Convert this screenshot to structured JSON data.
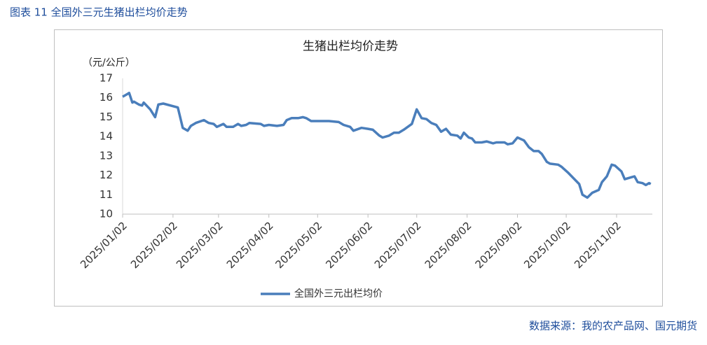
{
  "caption": "图表 11  全国外三元生猪出栏均价走势",
  "source": "数据来源：我的农产品网、国元期货",
  "chart_data": {
    "type": "line",
    "title": "生猪出栏均价走势",
    "y_label": "（元/公斤）",
    "x": [
      "2025/01/02",
      "2025/01/05",
      "2025/01/06",
      "2025/01/08",
      "2025/01/09",
      "2025/01/12",
      "2025/01/14",
      "2025/01/15",
      "2025/01/19",
      "2025/01/22",
      "2025/01/24",
      "2025/01/27",
      "2025/02/05",
      "2025/02/08",
      "2025/02/11",
      "2025/02/13",
      "2025/02/16",
      "2025/02/21",
      "2025/02/24",
      "2025/02/27",
      "2025/03/01",
      "2025/03/05",
      "2025/03/07",
      "2025/03/11",
      "2025/03/14",
      "2025/03/16",
      "2025/03/19",
      "2025/03/21",
      "2025/03/28",
      "2025/03/30",
      "2025/04/02",
      "2025/04/07",
      "2025/04/11",
      "2025/04/13",
      "2025/04/16",
      "2025/04/20",
      "2025/04/23",
      "2025/04/25",
      "2025/04/28",
      "2025/05/09",
      "2025/05/15",
      "2025/05/18",
      "2025/05/22",
      "2025/05/24",
      "2025/05/29",
      "2025/06/02",
      "2025/06/05",
      "2025/06/09",
      "2025/06/11",
      "2025/06/15",
      "2025/06/18",
      "2025/06/21",
      "2025/06/24",
      "2025/06/29",
      "2025/07/02",
      "2025/07/05",
      "2025/07/08",
      "2025/07/11",
      "2025/07/14",
      "2025/07/17",
      "2025/07/20",
      "2025/07/23",
      "2025/07/27",
      "2025/07/29",
      "2025/07/31",
      "2025/08/03",
      "2025/08/05",
      "2025/08/07",
      "2025/08/11",
      "2025/08/14",
      "2025/08/18",
      "2025/08/20",
      "2025/08/25",
      "2025/08/27",
      "2025/08/30",
      "2025/09/02",
      "2025/09/06",
      "2025/09/09",
      "2025/09/12",
      "2025/09/15",
      "2025/09/17",
      "2025/09/20",
      "2025/09/22",
      "2025/09/27",
      "2025/09/29",
      "2025/10/03",
      "2025/10/10",
      "2025/10/12",
      "2025/10/15",
      "2025/10/18",
      "2025/10/22",
      "2025/10/24",
      "2025/10/27",
      "2025/10/30",
      "2025/11/01",
      "2025/11/05",
      "2025/11/07",
      "2025/11/11",
      "2025/11/13",
      "2025/11/15",
      "2025/11/18",
      "2025/11/20",
      "2025/11/22",
      "2025/11/23"
    ],
    "series": [
      {
        "name": "全国外三元出栏均价",
        "color": "#4a7ebb",
        "values": [
          16.05,
          16.2,
          16.25,
          15.75,
          15.8,
          15.65,
          15.6,
          15.75,
          15.4,
          15.0,
          15.65,
          15.7,
          15.5,
          14.45,
          14.3,
          14.55,
          14.7,
          14.85,
          14.7,
          14.65,
          14.5,
          14.65,
          14.5,
          14.5,
          14.65,
          14.55,
          14.6,
          14.7,
          14.65,
          14.55,
          14.6,
          14.55,
          14.6,
          14.85,
          14.95,
          14.95,
          15.0,
          14.95,
          14.8,
          14.8,
          14.75,
          14.6,
          14.5,
          14.3,
          14.45,
          14.4,
          14.35,
          14.05,
          13.95,
          14.05,
          14.2,
          14.2,
          14.35,
          14.65,
          15.4,
          14.95,
          14.9,
          14.7,
          14.6,
          14.25,
          14.4,
          14.1,
          14.05,
          13.9,
          14.2,
          13.95,
          13.9,
          13.7,
          13.7,
          13.75,
          13.65,
          13.7,
          13.7,
          13.6,
          13.65,
          13.95,
          13.8,
          13.45,
          13.25,
          13.25,
          13.1,
          12.7,
          12.6,
          12.55,
          12.45,
          12.15,
          11.55,
          11.0,
          10.85,
          11.1,
          11.25,
          11.65,
          11.95,
          12.55,
          12.5,
          12.2,
          11.8,
          11.9,
          11.95,
          11.65,
          11.6,
          11.5,
          11.6,
          11.55
        ]
      }
    ],
    "xlim": [
      "2025/01/02",
      "2025/11/24"
    ],
    "xticks": [
      "2025/01/02",
      "2025/02/02",
      "2025/03/02",
      "2025/04/02",
      "2025/05/02",
      "2025/06/02",
      "2025/07/02",
      "2025/08/02",
      "2025/09/02",
      "2025/10/02",
      "2025/11/02"
    ],
    "ylim": [
      10,
      17
    ],
    "yticks": [
      10,
      11,
      12,
      13,
      14,
      15,
      16,
      17
    ],
    "grid": false,
    "legend": "bottom"
  }
}
